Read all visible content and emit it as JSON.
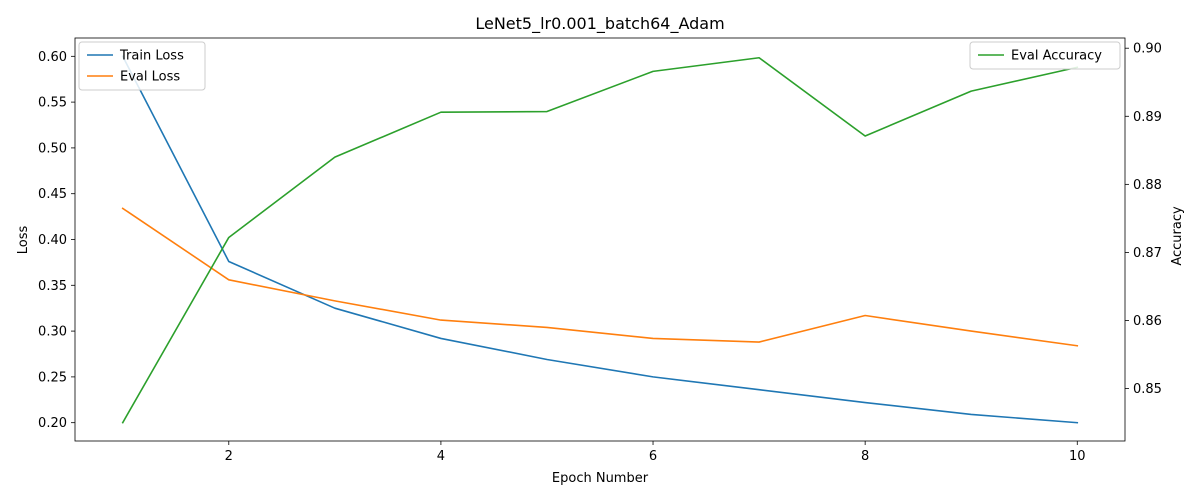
{
  "chart_data": {
    "type": "line",
    "title": "LeNet5_lr0.001_batch64_Adam",
    "xlabel": "Epoch Number",
    "ylabel_left": "Loss",
    "ylabel_right": "Accuracy",
    "x": [
      1,
      2,
      3,
      4,
      5,
      6,
      7,
      8,
      9,
      10
    ],
    "xlim": [
      0.55,
      10.45
    ],
    "ylim_left": [
      0.18,
      0.62
    ],
    "ylim_right": [
      0.8423,
      0.9015
    ],
    "x_ticks": [
      2,
      4,
      6,
      8,
      10
    ],
    "y_ticks_left": [
      "0.20",
      "0.25",
      "0.30",
      "0.35",
      "0.40",
      "0.45",
      "0.50",
      "0.55",
      "0.60"
    ],
    "y_ticks_right": [
      "0.85",
      "0.86",
      "0.87",
      "0.88",
      "0.89",
      "0.90"
    ],
    "grid": false,
    "series": [
      {
        "name": "Train Loss",
        "axis": "left",
        "color": "#1f77b4",
        "values": [
          0.6,
          0.376,
          0.325,
          0.292,
          0.269,
          0.25,
          0.236,
          0.222,
          0.209,
          0.2
        ]
      },
      {
        "name": "Eval Loss",
        "axis": "left",
        "color": "#ff7f0e",
        "values": [
          0.434,
          0.356,
          0.333,
          0.312,
          0.304,
          0.292,
          0.288,
          0.317,
          0.3,
          0.284
        ]
      },
      {
        "name": "Eval Accuracy",
        "axis": "right",
        "color": "#2ca02c",
        "values": [
          0.845,
          0.8722,
          0.884,
          0.8906,
          0.8907,
          0.8966,
          0.8986,
          0.8871,
          0.8937,
          0.8972
        ]
      }
    ],
    "legend_left": {
      "placement": "upper-left",
      "entries": [
        "Train Loss",
        "Eval Loss"
      ]
    },
    "legend_right": {
      "placement": "upper-right",
      "entries": [
        "Eval Accuracy"
      ]
    }
  }
}
